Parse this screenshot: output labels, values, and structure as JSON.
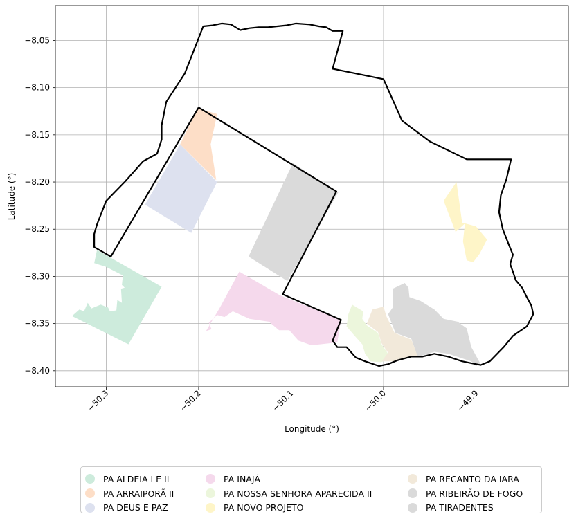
{
  "chart_data": {
    "type": "map",
    "xlabel": "Longitude (°)",
    "ylabel": "Latitude (°)",
    "xlim": [
      -50.355,
      -49.8
    ],
    "ylim": [
      -8.417,
      -8.013
    ],
    "xticks": [
      -50.3,
      -50.2,
      -50.1,
      -50.0,
      -49.9
    ],
    "xtick_labels": [
      "−50.3",
      "−50.2",
      "−50.1",
      "−50.0",
      "−49.9"
    ],
    "yticks": [
      -8.05,
      -8.1,
      -8.15,
      -8.2,
      -8.25,
      -8.3,
      -8.35,
      -8.4
    ],
    "ytick_labels": [
      "−8.05",
      "−8.10",
      "−8.15",
      "−8.20",
      "−8.25",
      "−8.30",
      "−8.35",
      "−8.40"
    ],
    "grid": true,
    "legend_position": "bottom-center",
    "legend_columns": 3,
    "regions": [
      {
        "name": "PA ALDEIA I E II",
        "color": "#cdebdc",
        "coords": [
          [
            -50.31,
            -8.272
          ],
          [
            -50.24,
            -8.311
          ],
          [
            -50.276,
            -8.372
          ],
          [
            -50.337,
            -8.342
          ],
          [
            -50.329,
            -8.335
          ],
          [
            -50.324,
            -8.337
          ],
          [
            -50.32,
            -8.328
          ],
          [
            -50.316,
            -8.334
          ],
          [
            -50.306,
            -8.33
          ],
          [
            -50.298,
            -8.333
          ],
          [
            -50.296,
            -8.337
          ],
          [
            -50.289,
            -8.336
          ],
          [
            -50.288,
            -8.325
          ],
          [
            -50.283,
            -8.328
          ],
          [
            -50.284,
            -8.313
          ],
          [
            -50.28,
            -8.312
          ],
          [
            -50.283,
            -8.309
          ],
          [
            -50.282,
            -8.299
          ],
          [
            -50.3,
            -8.29
          ],
          [
            -50.313,
            -8.286
          ]
        ]
      },
      {
        "name": "PA ARRAIPORÃ II",
        "color": "#fddec7",
        "coords": [
          [
            -50.201,
            -8.122
          ],
          [
            -50.18,
            -8.128
          ],
          [
            -50.187,
            -8.16
          ],
          [
            -50.181,
            -8.198
          ],
          [
            -50.22,
            -8.16
          ]
        ]
      },
      {
        "name": "PA DEUS E PAZ",
        "color": "#dde1ef",
        "coords": [
          [
            -50.22,
            -8.16
          ],
          [
            -50.18,
            -8.2
          ],
          [
            -50.208,
            -8.254
          ],
          [
            -50.258,
            -8.224
          ]
        ]
      },
      {
        "name": "PA INAJÁ",
        "color": "#f5d9ec",
        "coords": [
          [
            -50.156,
            -8.295
          ],
          [
            -50.112,
            -8.32
          ],
          [
            -50.046,
            -8.346
          ],
          [
            -50.05,
            -8.37
          ],
          [
            -50.078,
            -8.373
          ],
          [
            -50.092,
            -8.368
          ],
          [
            -50.102,
            -8.357
          ],
          [
            -50.113,
            -8.357
          ],
          [
            -50.124,
            -8.348
          ],
          [
            -50.145,
            -8.345
          ],
          [
            -50.163,
            -8.337
          ],
          [
            -50.172,
            -8.343
          ],
          [
            -50.18,
            -8.341
          ],
          [
            -50.189,
            -8.349
          ],
          [
            -50.186,
            -8.356
          ],
          [
            -50.192,
            -8.358
          ],
          [
            -50.177,
            -8.333
          ]
        ]
      },
      {
        "name": "PA NOSSA SENHORA APARECIDA II",
        "color": "#ecf6dc",
        "coords": [
          [
            -50.034,
            -8.33
          ],
          [
            -50.022,
            -8.337
          ],
          [
            -50.023,
            -8.345
          ],
          [
            -50.018,
            -8.352
          ],
          [
            -50.006,
            -8.36
          ],
          [
            -50.002,
            -8.372
          ],
          [
            -49.995,
            -8.382
          ],
          [
            -49.996,
            -8.389
          ],
          [
            -50.003,
            -8.391
          ],
          [
            -50.014,
            -8.39
          ],
          [
            -50.02,
            -8.382
          ],
          [
            -50.023,
            -8.372
          ],
          [
            -50.033,
            -8.361
          ],
          [
            -50.04,
            -8.353
          ],
          [
            -50.038,
            -8.34
          ]
        ]
      },
      {
        "name": "PA NOVO PROJETO",
        "color": "#fef5c8",
        "coords": [
          [
            -49.921,
            -8.2
          ],
          [
            -49.915,
            -8.243
          ],
          [
            -49.9,
            -8.247
          ],
          [
            -49.888,
            -8.261
          ],
          [
            -49.896,
            -8.276
          ],
          [
            -49.903,
            -8.285
          ],
          [
            -49.91,
            -8.283
          ],
          [
            -49.914,
            -8.263
          ],
          [
            -49.912,
            -8.244
          ],
          [
            -49.922,
            -8.253
          ],
          [
            -49.935,
            -8.22
          ]
        ]
      },
      {
        "name": "PA RECANTO DA IARA",
        "color": "#f2e9da",
        "coords": [
          [
            -50.012,
            -8.335
          ],
          [
            -50.0,
            -8.332
          ],
          [
            -49.997,
            -8.342
          ],
          [
            -49.988,
            -8.36
          ],
          [
            -49.97,
            -8.367
          ],
          [
            -49.963,
            -8.384
          ],
          [
            -49.975,
            -8.387
          ],
          [
            -49.988,
            -8.39
          ],
          [
            -50.002,
            -8.39
          ],
          [
            -49.995,
            -8.381
          ],
          [
            -50.002,
            -8.371
          ],
          [
            -50.006,
            -8.359
          ],
          [
            -50.018,
            -8.35
          ]
        ]
      },
      {
        "name": "PA RIBEIRÃO DE FOGO",
        "color": "#dadada",
        "coords": [
          [
            -50.098,
            -8.18
          ],
          [
            -50.146,
            -8.279
          ],
          [
            -50.104,
            -8.305
          ],
          [
            -50.049,
            -8.211
          ]
        ]
      },
      {
        "name": "PA TIRADENTES",
        "color": "#dadada",
        "coords": [
          [
            -49.977,
            -8.307
          ],
          [
            -49.99,
            -8.313
          ],
          [
            -49.99,
            -8.333
          ],
          [
            -49.995,
            -8.34
          ],
          [
            -49.987,
            -8.36
          ],
          [
            -49.97,
            -8.366
          ],
          [
            -49.963,
            -8.385
          ],
          [
            -49.955,
            -8.383
          ],
          [
            -49.945,
            -8.38
          ],
          [
            -49.93,
            -8.382
          ],
          [
            -49.905,
            -8.39
          ],
          [
            -49.9,
            -8.395
          ],
          [
            -49.895,
            -8.393
          ],
          [
            -49.905,
            -8.375
          ],
          [
            -49.91,
            -8.355
          ],
          [
            -49.92,
            -8.348
          ],
          [
            -49.935,
            -8.345
          ],
          [
            -49.945,
            -8.335
          ],
          [
            -49.96,
            -8.326
          ],
          [
            -49.972,
            -8.322
          ],
          [
            -49.973,
            -8.312
          ]
        ]
      }
    ],
    "boundaries": [
      {
        "coords": [
          [
            -50.2,
            -8.121
          ],
          [
            -50.051,
            -8.21
          ],
          [
            -50.109,
            -8.319
          ],
          [
            -50.046,
            -8.346
          ],
          [
            -50.055,
            -8.368
          ],
          [
            -50.05,
            -8.375
          ],
          [
            -50.04,
            -8.375
          ],
          [
            -50.03,
            -8.386
          ],
          [
            -50.02,
            -8.39
          ],
          [
            -50.005,
            -8.395
          ],
          [
            -49.995,
            -8.393
          ],
          [
            -49.985,
            -8.389
          ],
          [
            -49.97,
            -8.385
          ],
          [
            -49.958,
            -8.385
          ],
          [
            -49.945,
            -8.382
          ],
          [
            -49.93,
            -8.385
          ],
          [
            -49.915,
            -8.39
          ],
          [
            -49.905,
            -8.392
          ],
          [
            -49.895,
            -8.394
          ],
          [
            -49.885,
            -8.39
          ],
          [
            -49.87,
            -8.375
          ],
          [
            -49.86,
            -8.363
          ],
          [
            -49.845,
            -8.353
          ],
          [
            -49.838,
            -8.34
          ],
          [
            -49.84,
            -8.331
          ],
          [
            -49.845,
            -8.322
          ],
          [
            -49.85,
            -8.312
          ],
          [
            -49.857,
            -8.304
          ],
          [
            -49.86,
            -8.295
          ],
          [
            -49.863,
            -8.287
          ],
          [
            -49.86,
            -8.277
          ],
          [
            -49.865,
            -8.265
          ],
          [
            -49.871,
            -8.25
          ],
          [
            -49.875,
            -8.232
          ],
          [
            -49.873,
            -8.214
          ],
          [
            -49.867,
            -8.197
          ],
          [
            -49.862,
            -8.176
          ],
          [
            -49.91,
            -8.176
          ],
          [
            -49.95,
            -8.157
          ],
          [
            -49.98,
            -8.135
          ],
          [
            -50.0,
            -8.091
          ],
          [
            -50.055,
            -8.08
          ],
          [
            -50.044,
            -8.04
          ],
          [
            -50.055,
            -8.04
          ],
          [
            -50.062,
            -8.036
          ],
          [
            -50.07,
            -8.035
          ],
          [
            -50.08,
            -8.033
          ],
          [
            -50.095,
            -8.032
          ],
          [
            -50.105,
            -8.034
          ],
          [
            -50.115,
            -8.035
          ],
          [
            -50.125,
            -8.036
          ],
          [
            -50.135,
            -8.036
          ],
          [
            -50.145,
            -8.037
          ],
          [
            -50.155,
            -8.039
          ],
          [
            -50.165,
            -8.033
          ],
          [
            -50.175,
            -8.032
          ],
          [
            -50.185,
            -8.034
          ],
          [
            -50.195,
            -8.035
          ],
          [
            -50.215,
            -8.085
          ],
          [
            -50.225,
            -8.1
          ],
          [
            -50.235,
            -8.115
          ],
          [
            -50.24,
            -8.14
          ],
          [
            -50.24,
            -8.155
          ],
          [
            -50.245,
            -8.17
          ],
          [
            -50.26,
            -8.178
          ],
          [
            -50.28,
            -8.2
          ],
          [
            -50.3,
            -8.22
          ],
          [
            -50.31,
            -8.245
          ],
          [
            -50.313,
            -8.255
          ],
          [
            -50.313,
            -8.269
          ],
          [
            -50.295,
            -8.279
          ],
          [
            -50.2,
            -8.121
          ]
        ]
      }
    ],
    "legend": [
      {
        "label": "PA ALDEIA I E II",
        "color": "#cdebdc"
      },
      {
        "label": "PA ARRAIPORÃ II",
        "color": "#fddec7"
      },
      {
        "label": "PA DEUS E PAZ",
        "color": "#dde1ef"
      },
      {
        "label": "PA INAJÁ",
        "color": "#f5d9ec"
      },
      {
        "label": "PA NOSSA SENHORA APARECIDA II",
        "color": "#ecf6dc"
      },
      {
        "label": "PA NOVO PROJETO",
        "color": "#fef5c8"
      },
      {
        "label": "PA RECANTO DA IARA",
        "color": "#f2e9da"
      },
      {
        "label": "PA RIBEIRÃO DE FOGO",
        "color": "#dadada"
      },
      {
        "label": "PA TIRADENTES",
        "color": "#dadada"
      }
    ]
  }
}
